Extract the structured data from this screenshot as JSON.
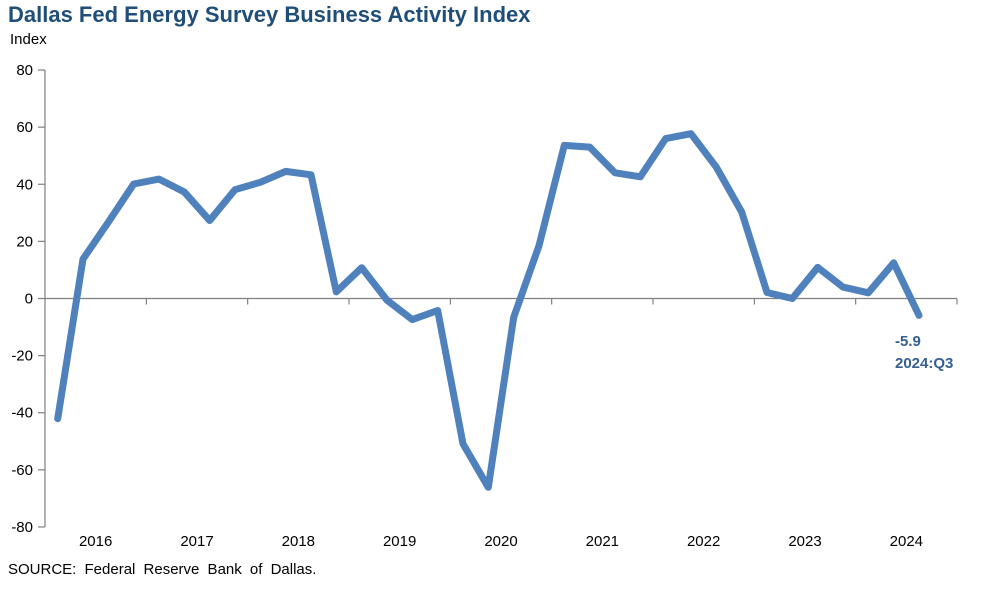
{
  "source_note": "SOURCE: Federal Reserve Bank of Dallas.",
  "chart_data": {
    "type": "line",
    "title": "Dallas Fed Energy Survey Business Activity Index",
    "ylabel": "Index",
    "xlabel": "",
    "ylim": [
      -80,
      80
    ],
    "y_ticks": [
      80,
      60,
      40,
      20,
      0,
      -20,
      -40,
      -60,
      -80
    ],
    "x_year_labels": [
      "2016",
      "2017",
      "2018",
      "2019",
      "2020",
      "2021",
      "2022",
      "2023",
      "2024"
    ],
    "grid": "zero-baseline-only",
    "legend_position": "none",
    "series": [
      {
        "name": "Business Activity Index",
        "frequency": "quarterly",
        "periods": [
          "2016:Q1",
          "2016:Q2",
          "2016:Q3",
          "2016:Q4",
          "2017:Q1",
          "2017:Q2",
          "2017:Q3",
          "2017:Q4",
          "2018:Q1",
          "2018:Q2",
          "2018:Q3",
          "2018:Q4",
          "2019:Q1",
          "2019:Q2",
          "2019:Q3",
          "2019:Q4",
          "2020:Q1",
          "2020:Q2",
          "2020:Q3",
          "2020:Q4",
          "2021:Q1",
          "2021:Q2",
          "2021:Q3",
          "2021:Q4",
          "2022:Q1",
          "2022:Q2",
          "2022:Q3",
          "2022:Q4",
          "2023:Q1",
          "2023:Q2",
          "2023:Q3",
          "2023:Q4",
          "2024:Q1",
          "2024:Q2",
          "2024:Q3"
        ],
        "values": [
          -42.1,
          13.8,
          26.7,
          40.1,
          41.8,
          37.3,
          27.3,
          38.1,
          40.7,
          44.5,
          43.3,
          2.3,
          10.8,
          -0.6,
          -7.4,
          -4.2,
          -50.9,
          -66.1,
          -6.6,
          18.5,
          53.6,
          53.0,
          44.0,
          42.6,
          56.0,
          57.7,
          46.0,
          30.3,
          2.1,
          0.0,
          10.9,
          4.0,
          2.0,
          12.5,
          -5.9
        ]
      }
    ],
    "annotation": {
      "value_label": "-5.9",
      "period_label": "2024:Q3"
    },
    "colors": {
      "line": "#4F81BD",
      "axis": "#808080",
      "title": "#1F4E79",
      "annotation": "#366092",
      "tick_text": "#000000"
    }
  }
}
